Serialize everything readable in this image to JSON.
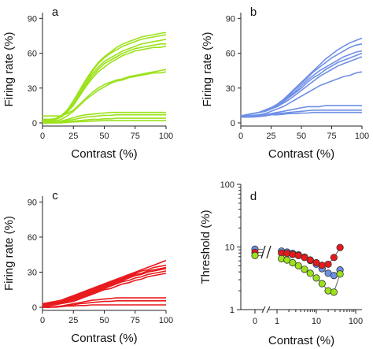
{
  "chart_data": [
    {
      "type": "line",
      "panel_label": "a",
      "color": "#9be21a",
      "xlabel": "Contrast (%)",
      "ylabel": "Firing rate (%)",
      "xlim": [
        0,
        100
      ],
      "ylim": [
        0,
        95
      ],
      "xticks": [
        "0",
        "25",
        "50",
        "75",
        "100"
      ],
      "yticks": [
        "0",
        "30",
        "60",
        "90"
      ],
      "x": [
        0,
        5,
        10,
        15,
        20,
        25,
        30,
        35,
        40,
        45,
        50,
        55,
        60,
        65,
        70,
        75,
        80,
        85,
        90,
        95,
        100
      ],
      "series": [
        {
          "values": [
            3,
            3,
            3.5,
            6,
            11,
            19,
            28,
            37,
            45,
            52,
            57,
            61,
            65,
            68,
            70,
            72,
            74,
            75,
            76,
            77,
            78
          ]
        },
        {
          "values": [
            3,
            3,
            3.5,
            6,
            11,
            18,
            27,
            36,
            44,
            51,
            56,
            60,
            63,
            66,
            68,
            70,
            72,
            73,
            74,
            75,
            76
          ]
        },
        {
          "values": [
            2,
            2,
            3,
            5,
            10,
            17,
            25,
            34,
            42,
            48,
            53,
            56,
            59,
            62,
            64,
            66,
            68,
            69,
            70,
            71,
            72
          ]
        },
        {
          "values": [
            2,
            2,
            3,
            5,
            9,
            16,
            24,
            32,
            40,
            46,
            51,
            54,
            57,
            60,
            62,
            64,
            65,
            66,
            67,
            68,
            68
          ]
        },
        {
          "values": [
            2,
            2,
            2.5,
            5,
            9,
            15,
            23,
            31,
            38,
            44,
            48,
            52,
            55,
            58,
            60,
            62,
            63,
            64,
            65,
            65,
            66
          ]
        },
        {
          "values": [
            6,
            6,
            6,
            6,
            8,
            11,
            16,
            21,
            26,
            30,
            33,
            35,
            37,
            38,
            40,
            41,
            42,
            43,
            44,
            45,
            46
          ]
        },
        {
          "values": [
            1,
            1,
            1.5,
            3,
            6,
            10,
            15,
            20,
            24,
            28,
            31,
            34,
            36,
            37,
            39,
            40,
            41,
            42,
            43,
            43,
            44
          ]
        },
        {
          "values": [
            0,
            0,
            0.5,
            1.5,
            3,
            4.5,
            6,
            7,
            7.5,
            8,
            8.5,
            9,
            9,
            9,
            9,
            9,
            9,
            9,
            9,
            9,
            9
          ]
        },
        {
          "values": [
            0,
            0,
            0.5,
            1,
            2,
            3,
            4,
            5,
            5.5,
            6,
            6.5,
            6.5,
            7,
            7,
            7,
            7,
            7,
            7,
            7,
            7,
            7
          ]
        },
        {
          "values": [
            0,
            0,
            0,
            0.5,
            1,
            1.5,
            2,
            2.5,
            3,
            3,
            3.5,
            3.5,
            4,
            4,
            4,
            4,
            4,
            4,
            4,
            4,
            4
          ]
        },
        {
          "values": [
            0,
            0,
            0,
            0,
            0.5,
            0.8,
            1,
            1.2,
            1.5,
            1.7,
            2,
            2,
            2,
            2,
            2,
            2,
            2,
            2,
            2,
            2,
            2
          ]
        }
      ]
    },
    {
      "type": "line",
      "panel_label": "b",
      "color": "#6e8fe6",
      "xlabel": "Contrast (%)",
      "ylabel": "Firing rate (%)",
      "xlim": [
        0,
        100
      ],
      "ylim": [
        0,
        95
      ],
      "xticks": [
        "0",
        "25",
        "50",
        "75",
        "100"
      ],
      "yticks": [
        "0",
        "30",
        "60",
        "90"
      ],
      "x": [
        0,
        5,
        10,
        15,
        20,
        25,
        30,
        35,
        40,
        45,
        50,
        55,
        60,
        65,
        70,
        75,
        80,
        85,
        90,
        95,
        100
      ],
      "series": [
        {
          "values": [
            6,
            7,
            8,
            9,
            11,
            13,
            16,
            20,
            25,
            30,
            35,
            40,
            45,
            50,
            55,
            59,
            63,
            66,
            69,
            71,
            73
          ]
        },
        {
          "values": [
            6,
            7,
            8,
            9,
            11,
            13,
            16,
            20,
            24,
            29,
            34,
            39,
            44,
            48,
            52,
            56,
            59,
            62,
            65,
            67,
            68
          ]
        },
        {
          "values": [
            6,
            7,
            8,
            9,
            11,
            13,
            16,
            19,
            23,
            27,
            32,
            37,
            41,
            45,
            48,
            51,
            54,
            57,
            59,
            61,
            62
          ]
        },
        {
          "values": [
            6,
            7,
            8,
            9,
            10,
            12,
            15,
            18,
            22,
            26,
            30,
            35,
            39,
            42,
            46,
            49,
            52,
            54,
            56,
            58,
            60
          ]
        },
        {
          "values": [
            6,
            7,
            8,
            9,
            10,
            12,
            14,
            17,
            20,
            24,
            28,
            32,
            36,
            40,
            43,
            46,
            49,
            51,
            53,
            55,
            57
          ]
        },
        {
          "values": [
            5,
            6,
            6.5,
            7,
            8,
            10,
            12,
            14,
            17,
            20,
            23,
            26,
            29,
            32,
            34,
            36,
            38,
            40,
            41,
            43,
            44
          ]
        },
        {
          "values": [
            5,
            5,
            5.5,
            6,
            7,
            8,
            9,
            10,
            11,
            12,
            13,
            14,
            14,
            14,
            15,
            15,
            15,
            15,
            15,
            15,
            15
          ]
        },
        {
          "values": [
            5,
            5,
            5,
            5.5,
            6,
            7,
            8,
            8.5,
            9,
            9.5,
            10,
            10.5,
            11,
            11,
            11,
            11,
            11,
            11,
            11,
            11,
            11
          ]
        },
        {
          "values": [
            6,
            6,
            6,
            6,
            6.5,
            7,
            7,
            7.5,
            8,
            8,
            8.5,
            8.5,
            9,
            9,
            9,
            9,
            9,
            9,
            9,
            9,
            9
          ]
        }
      ]
    },
    {
      "type": "line",
      "panel_label": "c",
      "color": "#e8191c",
      "xlabel": "Contrast (%)",
      "ylabel": "Firing rate (%)",
      "xlim": [
        0,
        100
      ],
      "ylim": [
        0,
        95
      ],
      "xticks": [
        "0",
        "25",
        "50",
        "75",
        "100"
      ],
      "yticks": [
        "0",
        "30",
        "60",
        "90"
      ],
      "x": [
        0,
        5,
        10,
        15,
        20,
        25,
        30,
        35,
        40,
        45,
        50,
        55,
        60,
        65,
        70,
        75,
        80,
        85,
        90,
        95,
        100
      ],
      "series": [
        {
          "values": [
            3,
            4,
            5,
            6,
            8,
            10,
            12,
            14,
            16,
            18,
            20,
            22,
            24,
            26,
            28,
            30,
            32,
            34,
            36,
            38,
            40
          ]
        },
        {
          "values": [
            2,
            3,
            4,
            5,
            7,
            9,
            11,
            13,
            15,
            17,
            19,
            21,
            23,
            25,
            27,
            29,
            31,
            32,
            34,
            35,
            36
          ]
        },
        {
          "values": [
            2,
            3,
            4,
            5,
            6,
            8,
            10,
            12,
            14,
            16,
            18,
            20,
            22,
            24,
            26,
            28,
            29,
            31,
            32,
            33,
            34
          ]
        },
        {
          "values": [
            1,
            2,
            3,
            4,
            5,
            7,
            9,
            11,
            13,
            15,
            17,
            19,
            21,
            23,
            25,
            27,
            28,
            30,
            31,
            32,
            33
          ]
        },
        {
          "values": [
            1,
            2,
            3,
            4,
            5,
            6,
            8,
            10,
            12,
            14,
            16,
            18,
            20,
            22,
            23,
            25,
            26,
            28,
            29,
            30,
            31
          ]
        },
        {
          "values": [
            1,
            1,
            2,
            3,
            4,
            5,
            7,
            9,
            11,
            13,
            15,
            16,
            18,
            20,
            21,
            23,
            24,
            26,
            27,
            28,
            29
          ]
        },
        {
          "values": [
            0,
            0,
            0.5,
            1,
            2,
            3,
            4,
            5,
            6,
            6.5,
            7,
            7.5,
            8,
            8,
            8,
            8,
            8,
            8,
            8,
            8,
            8
          ]
        },
        {
          "values": [
            0,
            0,
            0.5,
            1,
            1.5,
            2,
            3,
            3.5,
            4,
            4.5,
            5,
            5,
            5.5,
            5.5,
            5.5,
            5.5,
            5.5,
            5.5,
            5.5,
            5.5,
            5.5
          ]
        },
        {
          "values": [
            0,
            0,
            0,
            0.5,
            1,
            1,
            1.5,
            1.5,
            2,
            2,
            2,
            2,
            2,
            2,
            2,
            2,
            2,
            2,
            2,
            2,
            2
          ]
        }
      ]
    },
    {
      "type": "scatter",
      "panel_label": "d",
      "xlabel": "Contrast (%)",
      "ylabel": "Threshold (%)",
      "xscale": "log",
      "yscale": "log",
      "xlim": [
        1,
        100
      ],
      "ylim": [
        1,
        100
      ],
      "xticks": [
        "0",
        "1",
        "10",
        "100"
      ],
      "yticks": [
        "1",
        "10",
        "100"
      ],
      "zero_point_x": 0,
      "x": [
        1.3,
        1.8,
        2.5,
        3.5,
        5,
        7,
        10,
        14,
        20,
        28,
        40
      ],
      "series": [
        {
          "color": "#6e8fe6",
          "zero_value": 9.2,
          "values": [
            8.6,
            8.3,
            7.9,
            7.5,
            6.9,
            6.1,
            5.3,
            4.5,
            3.8,
            3.5,
            4.3
          ]
        },
        {
          "color": "#e8191c",
          "zero_value": 8.2,
          "values": [
            8.0,
            7.9,
            7.6,
            7.3,
            6.8,
            6.2,
            5.6,
            5.1,
            5.3,
            6.8,
            9.8
          ]
        },
        {
          "color": "#9be21a",
          "zero_value": 7.3,
          "values": [
            6.5,
            6.2,
            5.6,
            5.0,
            4.4,
            3.8,
            3.2,
            2.6,
            2.0,
            1.9,
            3.7
          ]
        }
      ]
    }
  ]
}
